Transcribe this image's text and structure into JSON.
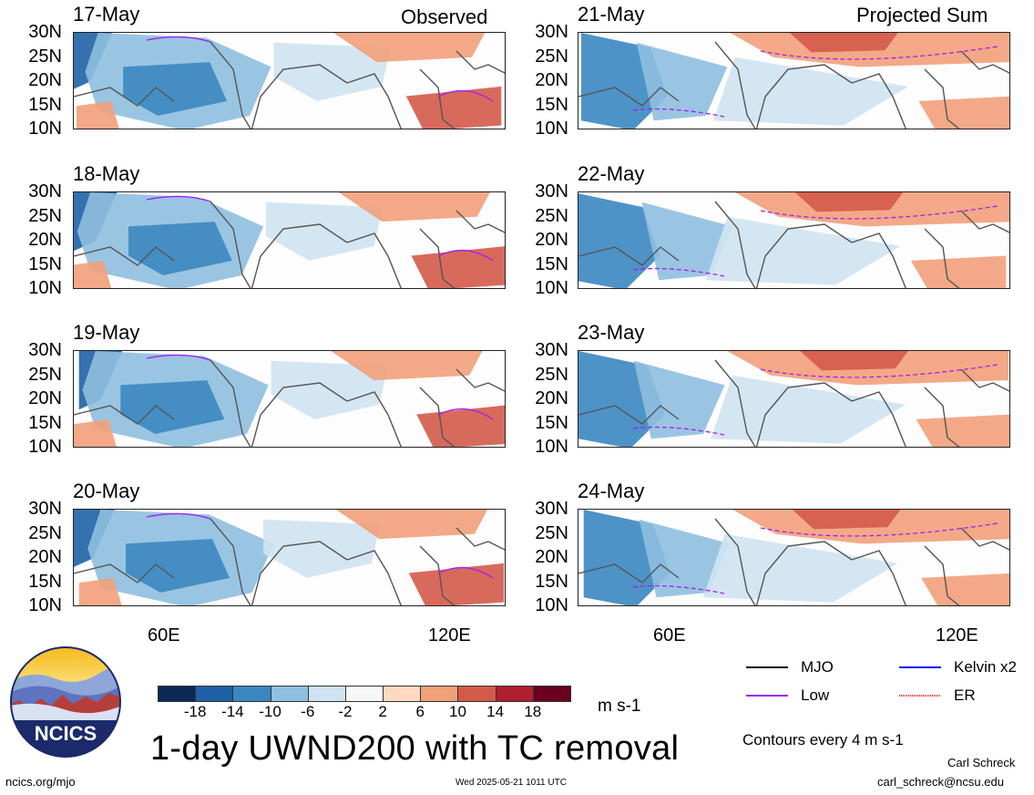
{
  "figure": {
    "panel_tags": {
      "left": "Observed",
      "right": "Projected Sum"
    },
    "lat_labels": [
      "30N",
      "25N",
      "20N",
      "15N",
      "10N"
    ],
    "lon_labels": [
      "60E",
      "120E"
    ],
    "panels": [
      {
        "date": "17-May",
        "kind": "observed"
      },
      {
        "date": "18-May",
        "kind": "observed"
      },
      {
        "date": "19-May",
        "kind": "observed"
      },
      {
        "date": "20-May",
        "kind": "observed"
      },
      {
        "date": "21-May",
        "kind": "projected"
      },
      {
        "date": "22-May",
        "kind": "projected"
      },
      {
        "date": "23-May",
        "kind": "projected"
      },
      {
        "date": "24-May",
        "kind": "projected"
      }
    ]
  },
  "colorbar": {
    "colors": [
      "#0b2a55",
      "#1f60a6",
      "#3b87c1",
      "#8fbfdf",
      "#cfe3f1",
      "#f7f7f7",
      "#fdd9c1",
      "#f2a07a",
      "#d45a4a",
      "#b01f2e",
      "#6b0020"
    ],
    "ticks": [
      "-18",
      "-14",
      "-10",
      "-6",
      "-2",
      "2",
      "6",
      "10",
      "14",
      "18"
    ],
    "units": "m s-1"
  },
  "legend": {
    "items": [
      {
        "label": "MJO",
        "color": "#000000"
      },
      {
        "label": "Kelvin x2",
        "color": "#0000ff"
      },
      {
        "label": "Low",
        "color": "#a020f0"
      },
      {
        "label": "ER",
        "color": "#ff0000"
      }
    ],
    "contour_note": "Contours every 4 m s-1"
  },
  "title": "1-day UWND200 with TC removal",
  "logo_text": "NCICS",
  "footer": {
    "url": "ncics.org/mjo",
    "timestamp": "Wed 2025-05-21 1011 UTC",
    "author": "Carl Schreck",
    "email": "carl_schreck@ncsu.edu"
  }
}
